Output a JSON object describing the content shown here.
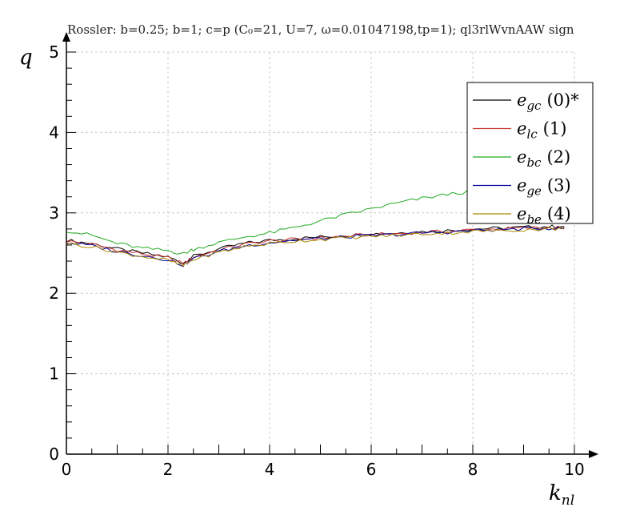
{
  "chart_data": {
    "type": "line",
    "title": "Rossler: b=0.25; b=1; c=p (C₀=21, U=7, ω=0.01047198,tp=1); ql3rlWvnAAW sign",
    "xlabel": {
      "main": "k",
      "sub": "nl"
    },
    "ylabel": "q",
    "xlim": [
      0,
      10
    ],
    "ylim": [
      0,
      5
    ],
    "x_ticks": [
      "0",
      "2",
      "4",
      "6",
      "8",
      "10"
    ],
    "y_ticks": [
      "0",
      "1",
      "2",
      "3",
      "4",
      "5"
    ],
    "grid": true,
    "legend_position": "top-right",
    "x": [
      0,
      0.5,
      1,
      1.5,
      2,
      2.3,
      2.5,
      3,
      3.5,
      4,
      4.5,
      5,
      5.5,
      6,
      6.5,
      7,
      7.5,
      8,
      8.5,
      9,
      9.5,
      9.8
    ],
    "series": [
      {
        "name_main": "e",
        "name_sub": "gc",
        "name_tag": "(0)*",
        "color": "#000000",
        "values": [
          2.66,
          2.62,
          2.55,
          2.5,
          2.45,
          2.38,
          2.46,
          2.55,
          2.62,
          2.66,
          2.68,
          2.7,
          2.72,
          2.74,
          2.75,
          2.77,
          2.78,
          2.8,
          2.81,
          2.82,
          2.83,
          2.83
        ]
      },
      {
        "name_main": "e",
        "name_sub": "lc",
        "name_tag": "(1)",
        "color": "#cc3333",
        "values": [
          2.65,
          2.61,
          2.54,
          2.49,
          2.44,
          2.37,
          2.45,
          2.54,
          2.61,
          2.65,
          2.67,
          2.69,
          2.71,
          2.73,
          2.74,
          2.76,
          2.77,
          2.79,
          2.8,
          2.81,
          2.82,
          2.82
        ]
      },
      {
        "name_main": "e",
        "name_sub": "bc",
        "name_tag": "(2)",
        "color": "#22aa22",
        "values": [
          2.78,
          2.72,
          2.62,
          2.56,
          2.53,
          2.49,
          2.55,
          2.63,
          2.7,
          2.75,
          2.82,
          2.9,
          2.98,
          3.05,
          3.12,
          3.18,
          3.23,
          3.27,
          3.31,
          3.35,
          3.38,
          3.4
        ]
      },
      {
        "name_main": "e",
        "name_sub": "ge",
        "name_tag": "(3)",
        "color": "#000099",
        "values": [
          2.63,
          2.59,
          2.52,
          2.47,
          2.42,
          2.35,
          2.43,
          2.52,
          2.59,
          2.63,
          2.66,
          2.68,
          2.7,
          2.72,
          2.73,
          2.75,
          2.76,
          2.78,
          2.79,
          2.8,
          2.81,
          2.81
        ]
      },
      {
        "name_main": "e",
        "name_sub": "be",
        "name_tag": "(4)",
        "color": "#aa8800",
        "values": [
          2.62,
          2.58,
          2.51,
          2.46,
          2.41,
          2.34,
          2.42,
          2.51,
          2.58,
          2.62,
          2.65,
          2.67,
          2.69,
          2.71,
          2.72,
          2.74,
          2.75,
          2.77,
          2.78,
          2.79,
          2.8,
          2.8
        ]
      }
    ]
  }
}
